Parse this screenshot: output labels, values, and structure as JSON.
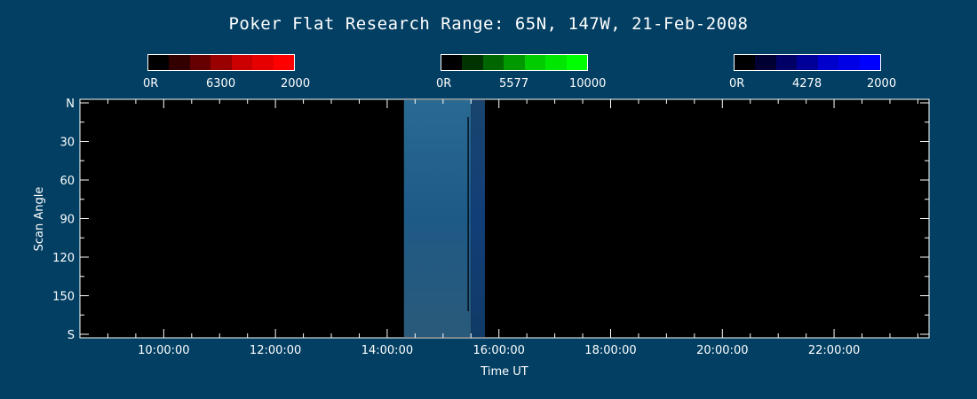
{
  "title": "Poker Flat Research Range: 65N, 147W, 21-Feb-2008",
  "colorbars": [
    {
      "name": "red",
      "colors": [
        "#000000",
        "#330000",
        "#660000",
        "#990000",
        "#CC0000",
        "#E60000",
        "#FF0000"
      ],
      "labels": [
        "0R",
        "6300",
        "2000"
      ]
    },
    {
      "name": "green",
      "colors": [
        "#000000",
        "#003300",
        "#006600",
        "#009900",
        "#00CC00",
        "#00E600",
        "#00FF00"
      ],
      "labels": [
        "0R",
        "5577",
        "10000"
      ]
    },
    {
      "name": "blue",
      "colors": [
        "#000000",
        "#000033",
        "#000066",
        "#000099",
        "#0000CC",
        "#0000E6",
        "#0000FF"
      ],
      "labels": [
        "0R",
        "4278",
        "2000"
      ]
    }
  ],
  "chart_data": {
    "type": "heatmap",
    "title": "Poker Flat Research Range: 65N, 147W, 21-Feb-2008",
    "xlabel": "Time UT",
    "ylabel": "Scan Angle",
    "x_tick_labels": [
      "10:00:00",
      "12:00:00",
      "14:00:00",
      "16:00:00",
      "18:00:00",
      "20:00:00",
      "22:00:00"
    ],
    "x_ticks_hours": [
      10,
      12,
      14,
      16,
      18,
      20,
      22
    ],
    "xlim_hours": [
      8.5,
      23.7
    ],
    "y_tick_labels": [
      "N",
      "30",
      "60",
      "90",
      "120",
      "150",
      "S"
    ],
    "y_ticks": [
      0,
      30,
      60,
      90,
      120,
      150,
      180
    ],
    "ylim": [
      0,
      180
    ],
    "data_segments": [
      {
        "start_hour": 14.3,
        "end_hour": 15.5,
        "color": "#1E5A86",
        "description": "dim blue-green emission"
      },
      {
        "start_hour": 15.5,
        "end_hour": 15.75,
        "color": "#103A66",
        "description": "darker blue emission"
      }
    ],
    "background_color": "#000000",
    "page_background": "#023F63"
  }
}
